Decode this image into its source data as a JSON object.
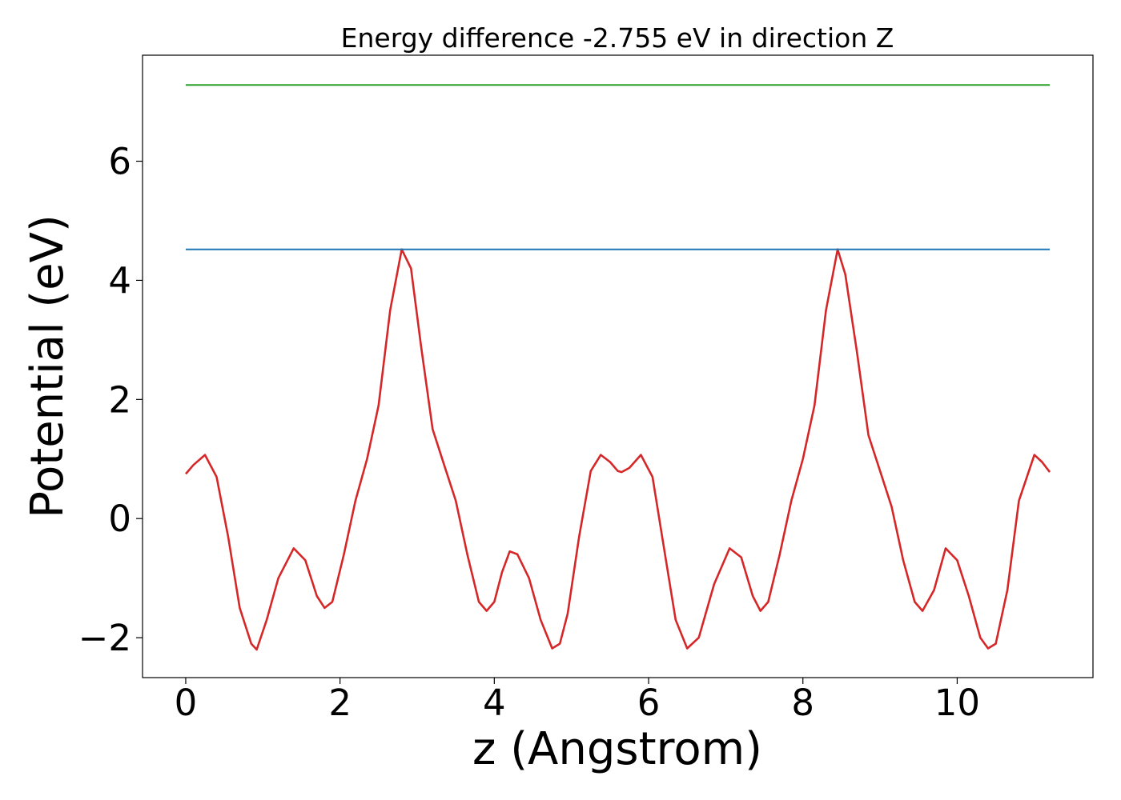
{
  "chart_data": {
    "type": "line",
    "title": "Energy difference -2.755 eV in direction Z",
    "xlabel": "z (Angstrom)",
    "ylabel": "Potential (eV)",
    "xlim": [
      -0.56,
      11.76
    ],
    "ylim": [
      -2.67,
      7.78
    ],
    "grid": false,
    "legend": "none",
    "xticks": [
      0,
      2,
      4,
      6,
      8,
      10
    ],
    "xtick_labels": [
      "0",
      "2",
      "4",
      "6",
      "8",
      "10"
    ],
    "yticks": [
      -2,
      0,
      2,
      4,
      6
    ],
    "ytick_labels": [
      "−2",
      "0",
      "2",
      "4",
      "6"
    ],
    "series": [
      {
        "color": "#d62728",
        "x": [
          0,
          0.1,
          0.25,
          0.4,
          0.55,
          0.7,
          0.85,
          0.92,
          1.05,
          1.2,
          1.4,
          1.55,
          1.7,
          1.8,
          1.9,
          2.05,
          2.2,
          2.35,
          2.5,
          2.65,
          2.8,
          2.92,
          3.05,
          3.2,
          3.35,
          3.5,
          3.65,
          3.8,
          3.9,
          4.0,
          4.1,
          4.2,
          4.3,
          4.45,
          4.6,
          4.75,
          4.85,
          4.95,
          5.1,
          5.25,
          5.38,
          5.5,
          5.6,
          5.65,
          5.75,
          5.9,
          6.05,
          6.2,
          6.35,
          6.5,
          6.65,
          6.85,
          7.05,
          7.2,
          7.35,
          7.45,
          7.55,
          7.7,
          7.85,
          8.0,
          8.15,
          8.3,
          8.45,
          8.55,
          8.7,
          8.85,
          9.0,
          9.15,
          9.3,
          9.45,
          9.55,
          9.7,
          9.85,
          10.0,
          10.15,
          10.3,
          10.4,
          10.5,
          10.65,
          10.8,
          11.0,
          11.1,
          11.2
        ],
        "y": [
          0.75,
          0.9,
          1.07,
          0.7,
          -0.3,
          -1.5,
          -2.1,
          -2.2,
          -1.7,
          -1.0,
          -0.5,
          -0.7,
          -1.3,
          -1.5,
          -1.4,
          -0.6,
          0.3,
          1.0,
          1.9,
          3.5,
          4.52,
          4.2,
          2.9,
          1.5,
          0.9,
          0.3,
          -0.6,
          -1.4,
          -1.55,
          -1.4,
          -0.9,
          -0.55,
          -0.6,
          -1.0,
          -1.7,
          -2.18,
          -2.1,
          -1.6,
          -0.3,
          0.8,
          1.07,
          0.95,
          0.8,
          0.78,
          0.85,
          1.07,
          0.7,
          -0.5,
          -1.7,
          -2.18,
          -2.0,
          -1.1,
          -0.5,
          -0.65,
          -1.3,
          -1.55,
          -1.4,
          -0.6,
          0.3,
          1.0,
          1.9,
          3.5,
          4.52,
          4.1,
          2.8,
          1.4,
          0.8,
          0.2,
          -0.7,
          -1.4,
          -1.55,
          -1.2,
          -0.5,
          -0.7,
          -1.3,
          -2.0,
          -2.18,
          -2.1,
          -1.2,
          0.3,
          1.07,
          0.95,
          0.78
        ]
      },
      {
        "color": "#1f77b4",
        "x": [
          0,
          11.2
        ],
        "y": [
          4.52,
          4.52
        ]
      },
      {
        "color": "#2ca02c",
        "x": [
          0,
          11.2
        ],
        "y": [
          7.28,
          7.28
        ]
      }
    ]
  }
}
